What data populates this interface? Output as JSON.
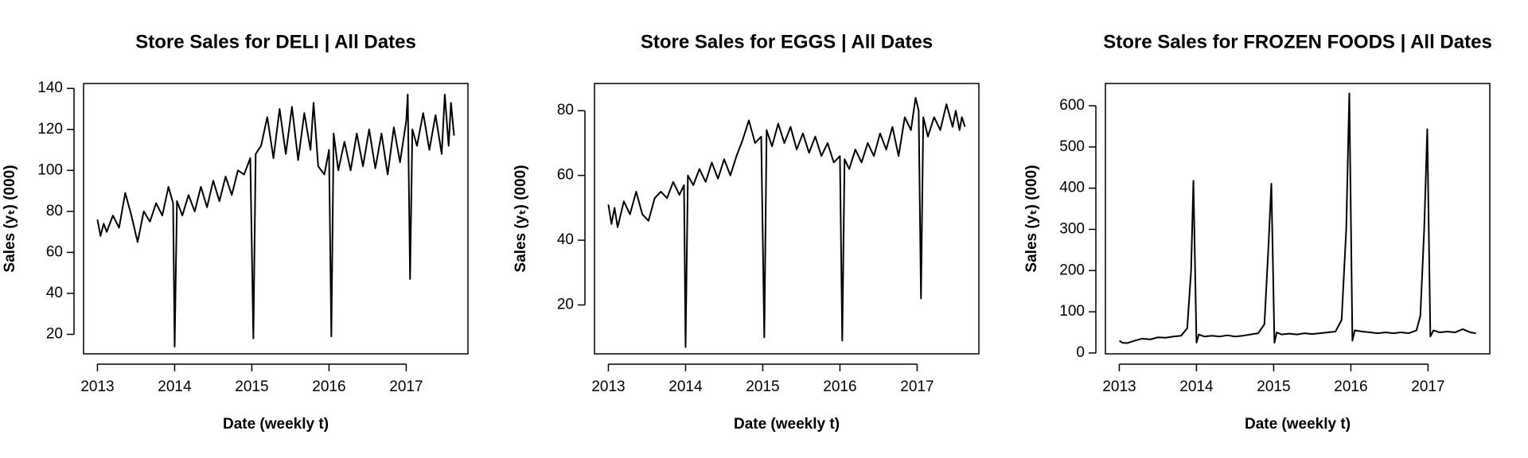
{
  "chart_data": [
    {
      "type": "line",
      "title": "Store Sales for DELI  |  All Dates",
      "xlabel": "Date (weekly t)",
      "ylabel": "Sales (yₜ) (000)",
      "xlim": [
        2012.82,
        2017.8
      ],
      "xticks": [
        2013,
        2014,
        2015,
        2016,
        2017
      ],
      "ylim": [
        10.5,
        142.4
      ],
      "yticks": [
        20,
        40,
        60,
        80,
        100,
        120,
        140
      ],
      "x": [
        2013.0,
        2013.04,
        2013.08,
        2013.12,
        2013.2,
        2013.28,
        2013.36,
        2013.44,
        2013.52,
        2013.6,
        2013.68,
        2013.76,
        2013.84,
        2013.92,
        2013.98,
        2014.0,
        2014.03,
        2014.1,
        2014.18,
        2014.26,
        2014.34,
        2014.42,
        2014.5,
        2014.58,
        2014.66,
        2014.74,
        2014.82,
        2014.9,
        2014.98,
        2015.02,
        2015.05,
        2015.12,
        2015.2,
        2015.28,
        2015.36,
        2015.44,
        2015.52,
        2015.6,
        2015.68,
        2015.76,
        2015.8,
        2015.86,
        2015.94,
        2016.0,
        2016.03,
        2016.06,
        2016.12,
        2016.2,
        2016.28,
        2016.36,
        2016.44,
        2016.52,
        2016.6,
        2016.68,
        2016.76,
        2016.84,
        2016.92,
        2017.0,
        2017.02,
        2017.05,
        2017.08,
        2017.14,
        2017.22,
        2017.3,
        2017.38,
        2017.46,
        2017.5,
        2017.55,
        2017.58,
        2017.62
      ],
      "series": [
        {
          "color": "#000000",
          "values": [
            76,
            68,
            74,
            70,
            78,
            72,
            89,
            78,
            65,
            80,
            75,
            84,
            78,
            92,
            84,
            14,
            85,
            78,
            88,
            80,
            92,
            82,
            95,
            85,
            97,
            88,
            100,
            98,
            106,
            18,
            108,
            112,
            126,
            106,
            130,
            108,
            131,
            105,
            128,
            110,
            133,
            102,
            98,
            110,
            19,
            118,
            100,
            114,
            100,
            118,
            102,
            120,
            101,
            118,
            98,
            121,
            104,
            124,
            137,
            47,
            120,
            112,
            128,
            110,
            127,
            108,
            137,
            112,
            133,
            117
          ]
        }
      ]
    },
    {
      "type": "line",
      "title": "Store Sales for EGGS  |  All Dates",
      "xlabel": "Date (weekly t)",
      "ylabel": "Sales (yₜ) (000)",
      "xlim": [
        2012.82,
        2017.8
      ],
      "xticks": [
        2013,
        2014,
        2015,
        2016,
        2017
      ],
      "ylim": [
        4.9,
        88.4
      ],
      "yticks": [
        20,
        40,
        60,
        80
      ],
      "x": [
        2013.0,
        2013.04,
        2013.08,
        2013.12,
        2013.2,
        2013.28,
        2013.36,
        2013.44,
        2013.52,
        2013.6,
        2013.68,
        2013.76,
        2013.84,
        2013.92,
        2013.98,
        2014.0,
        2014.03,
        2014.1,
        2014.18,
        2014.26,
        2014.34,
        2014.42,
        2014.5,
        2014.58,
        2014.66,
        2014.74,
        2014.82,
        2014.9,
        2014.98,
        2015.02,
        2015.05,
        2015.12,
        2015.2,
        2015.28,
        2015.36,
        2015.44,
        2015.52,
        2015.6,
        2015.68,
        2015.76,
        2015.84,
        2015.92,
        2016.0,
        2016.03,
        2016.06,
        2016.12,
        2016.2,
        2016.28,
        2016.36,
        2016.44,
        2016.52,
        2016.6,
        2016.68,
        2016.76,
        2016.84,
        2016.92,
        2016.98,
        2017.02,
        2017.05,
        2017.08,
        2017.14,
        2017.22,
        2017.3,
        2017.38,
        2017.46,
        2017.5,
        2017.55,
        2017.58,
        2017.62
      ],
      "series": [
        {
          "color": "#000000",
          "values": [
            51,
            45,
            50,
            44,
            52,
            48,
            55,
            48,
            46,
            53,
            55,
            53,
            58,
            54,
            57,
            7,
            60,
            57,
            62,
            58,
            64,
            59,
            65,
            60,
            66,
            71,
            77,
            70,
            72,
            10,
            74,
            69,
            76,
            70,
            75,
            68,
            73,
            67,
            72,
            66,
            70,
            64,
            66,
            9,
            65,
            62,
            68,
            64,
            70,
            66,
            73,
            68,
            75,
            66,
            78,
            74,
            84,
            80,
            22,
            78,
            72,
            78,
            74,
            82,
            75,
            80,
            74,
            78,
            75
          ]
        }
      ]
    },
    {
      "type": "line",
      "title": "Store Sales for FROZEN FOODS  |  All Dates",
      "xlabel": "Date (weekly t)",
      "ylabel": "Sales (yₜ) (000)",
      "xlim": [
        2012.82,
        2017.8
      ],
      "xticks": [
        2013,
        2014,
        2015,
        2016,
        2017
      ],
      "ylim": [
        -2,
        654
      ],
      "yticks": [
        0,
        100,
        200,
        300,
        400,
        500,
        600
      ],
      "x": [
        2013.0,
        2013.04,
        2013.1,
        2013.2,
        2013.3,
        2013.4,
        2013.5,
        2013.6,
        2013.7,
        2013.8,
        2013.88,
        2013.93,
        2013.96,
        2014.0,
        2014.03,
        2014.1,
        2014.2,
        2014.3,
        2014.4,
        2014.5,
        2014.6,
        2014.7,
        2014.8,
        2014.88,
        2014.93,
        2014.97,
        2015.01,
        2015.04,
        2015.1,
        2015.2,
        2015.3,
        2015.4,
        2015.5,
        2015.6,
        2015.7,
        2015.8,
        2015.88,
        2015.94,
        2015.98,
        2016.02,
        2016.05,
        2016.15,
        2016.25,
        2016.35,
        2016.45,
        2016.55,
        2016.65,
        2016.75,
        2016.85,
        2016.9,
        2016.95,
        2016.99,
        2017.03,
        2017.07,
        2017.15,
        2017.25,
        2017.35,
        2017.45,
        2017.55,
        2017.62
      ],
      "series": [
        {
          "color": "#000000",
          "values": [
            30,
            25,
            24,
            30,
            35,
            33,
            38,
            37,
            40,
            42,
            60,
            200,
            418,
            25,
            45,
            40,
            42,
            40,
            43,
            40,
            42,
            45,
            48,
            70,
            250,
            411,
            25,
            50,
            45,
            47,
            45,
            48,
            46,
            48,
            50,
            52,
            80,
            300,
            630,
            30,
            55,
            52,
            50,
            48,
            50,
            48,
            50,
            48,
            55,
            90,
            300,
            543,
            40,
            55,
            50,
            52,
            50,
            58,
            50,
            48
          ]
        }
      ]
    }
  ]
}
